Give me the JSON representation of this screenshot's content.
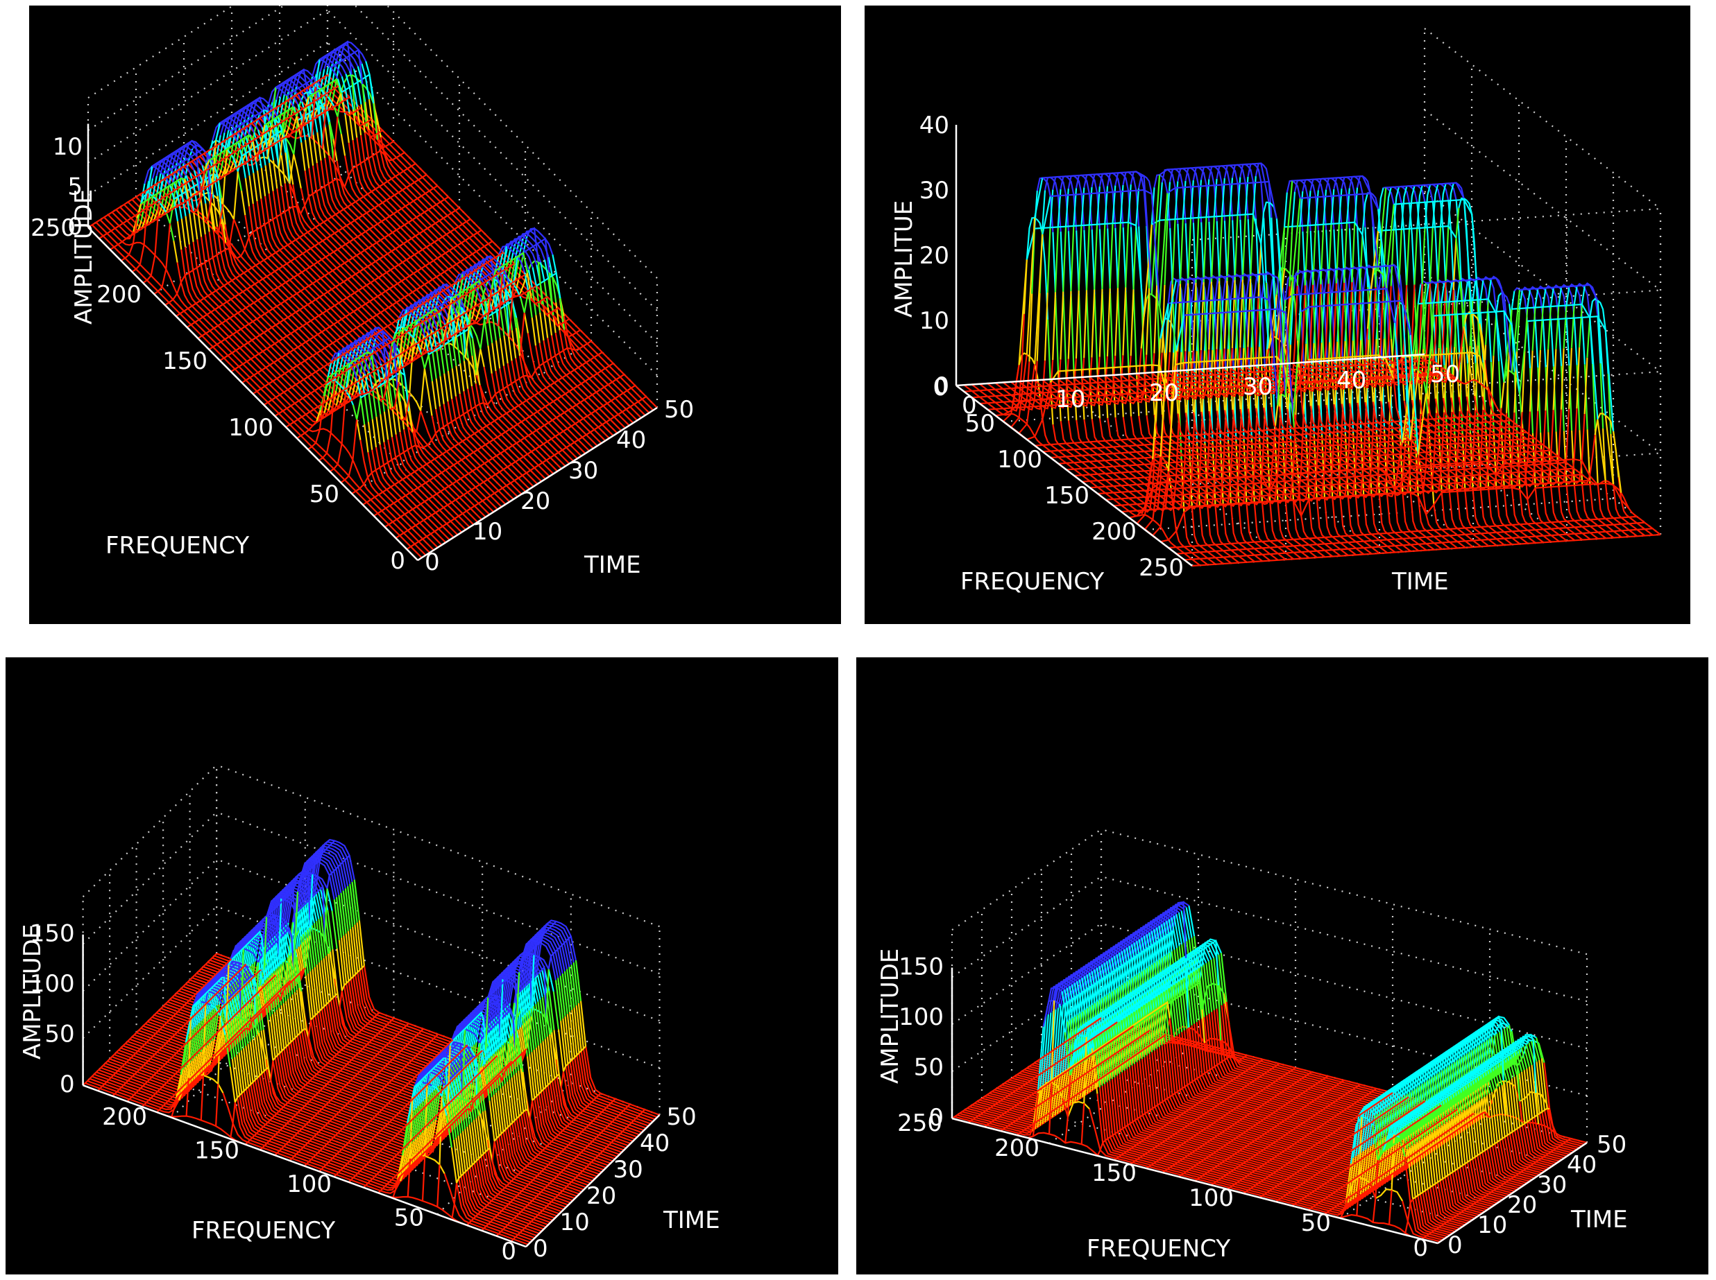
{
  "chart_data": [
    {
      "type": "surface",
      "zlabel": "AMPLITUDE",
      "xlabel": "FREQUENCY",
      "ylabel": "TIME",
      "z_ticks": [
        "0",
        "5",
        "10"
      ],
      "x_ticks": [
        "0",
        "50",
        "100",
        "150",
        "200",
        "250"
      ],
      "y_ticks": [
        "0",
        "10",
        "20",
        "30",
        "40",
        "50"
      ],
      "zlim": [
        0,
        13
      ],
      "xlim": [
        0,
        250
      ],
      "ylim": [
        0,
        50
      ],
      "peaks": [
        {
          "freq": 210,
          "time": [
            4,
            13
          ],
          "amplitude": 12
        },
        {
          "freq": 210,
          "time": [
            18,
            27
          ],
          "amplitude": 12
        },
        {
          "freq": 210,
          "time": [
            30,
            36
          ],
          "amplitude": 12
        },
        {
          "freq": 210,
          "time": [
            39,
            45
          ],
          "amplitude": 12
        },
        {
          "freq": 70,
          "time": [
            4,
            13
          ],
          "amplitude": 12
        },
        {
          "freq": 70,
          "time": [
            18,
            27
          ],
          "amplitude": 12
        },
        {
          "freq": 70,
          "time": [
            30,
            36
          ],
          "amplitude": 12
        },
        {
          "freq": 70,
          "time": [
            39,
            45
          ],
          "amplitude": 12
        }
      ]
    },
    {
      "type": "surface",
      "zlabel": "AMPLITUE",
      "xlabel": "FREQUENCY",
      "ylabel": "TIME",
      "z_ticks": [
        "0",
        "10",
        "20",
        "30",
        "40"
      ],
      "x_ticks": [
        "0",
        "50",
        "100",
        "150",
        "200",
        "250"
      ],
      "y_ticks": [
        "0",
        "10",
        "20",
        "30",
        "40",
        "50"
      ],
      "zlim": [
        0,
        40
      ],
      "xlim": [
        0,
        250
      ],
      "ylim": [
        0,
        50
      ],
      "peaks": [
        {
          "freq": 60,
          "time": [
            40,
            48
          ],
          "amplitude": 33
        },
        {
          "freq": 60,
          "time": [
            30,
            38
          ],
          "amplitude": 35
        },
        {
          "freq": 60,
          "time": [
            16,
            27
          ],
          "amplitude": 38
        },
        {
          "freq": 60,
          "time": [
            3,
            14
          ],
          "amplitude": 38
        },
        {
          "freq": 200,
          "time": [
            40,
            48
          ],
          "amplitude": 33
        },
        {
          "freq": 200,
          "time": [
            30,
            38
          ],
          "amplitude": 35
        },
        {
          "freq": 200,
          "time": [
            16,
            27
          ],
          "amplitude": 38
        },
        {
          "freq": 200,
          "time": [
            3,
            14
          ],
          "amplitude": 38
        }
      ]
    },
    {
      "type": "surface",
      "zlabel": "AMPLITUDE",
      "xlabel": "FREQUENCY",
      "ylabel": "TIME",
      "z_ticks": [
        "0",
        "50",
        "100",
        "150"
      ],
      "x_ticks": [
        "0",
        "50",
        "100",
        "150",
        "200"
      ],
      "y_ticks": [
        "0",
        "10",
        "20",
        "30",
        "40",
        "50"
      ],
      "zlim": [
        0,
        150
      ],
      "xlim": [
        0,
        240
      ],
      "ylim": [
        0,
        50
      ],
      "peaks": [
        {
          "freq": 175,
          "time": [
            2,
            14
          ],
          "amplitude": 130
        },
        {
          "freq": 175,
          "time": [
            16,
            28
          ],
          "amplitude": 140
        },
        {
          "freq": 175,
          "time": [
            30,
            40
          ],
          "amplitude": 150
        },
        {
          "freq": 175,
          "time": [
            42,
            50
          ],
          "amplitude": 155
        },
        {
          "freq": 55,
          "time": [
            2,
            14
          ],
          "amplitude": 130
        },
        {
          "freq": 55,
          "time": [
            16,
            28
          ],
          "amplitude": 140
        },
        {
          "freq": 55,
          "time": [
            30,
            40
          ],
          "amplitude": 150
        },
        {
          "freq": 55,
          "time": [
            42,
            50
          ],
          "amplitude": 155
        }
      ]
    },
    {
      "type": "surface",
      "zlabel": "AMPLITUDE",
      "xlabel": "FREQUENCY",
      "ylabel": "TIME",
      "z_ticks": [
        "0",
        "50",
        "100",
        "150"
      ],
      "x_ticks": [
        "0",
        "50",
        "100",
        "150",
        "200",
        "250"
      ],
      "y_ticks": [
        "0",
        "10",
        "20",
        "30",
        "40",
        "50"
      ],
      "zlim": [
        0,
        150
      ],
      "xlim": [
        0,
        250
      ],
      "ylim": [
        0,
        50
      ],
      "peaks": [
        {
          "freq": 200,
          "time": [
            2,
            45
          ],
          "amplitude": 150
        },
        {
          "freq": 185,
          "time": [
            2,
            45
          ],
          "amplitude": 120
        },
        {
          "freq": 40,
          "time": [
            2,
            48
          ],
          "amplitude": 110
        },
        {
          "freq": 25,
          "time": [
            2,
            48
          ],
          "amplitude": 100
        }
      ]
    }
  ]
}
